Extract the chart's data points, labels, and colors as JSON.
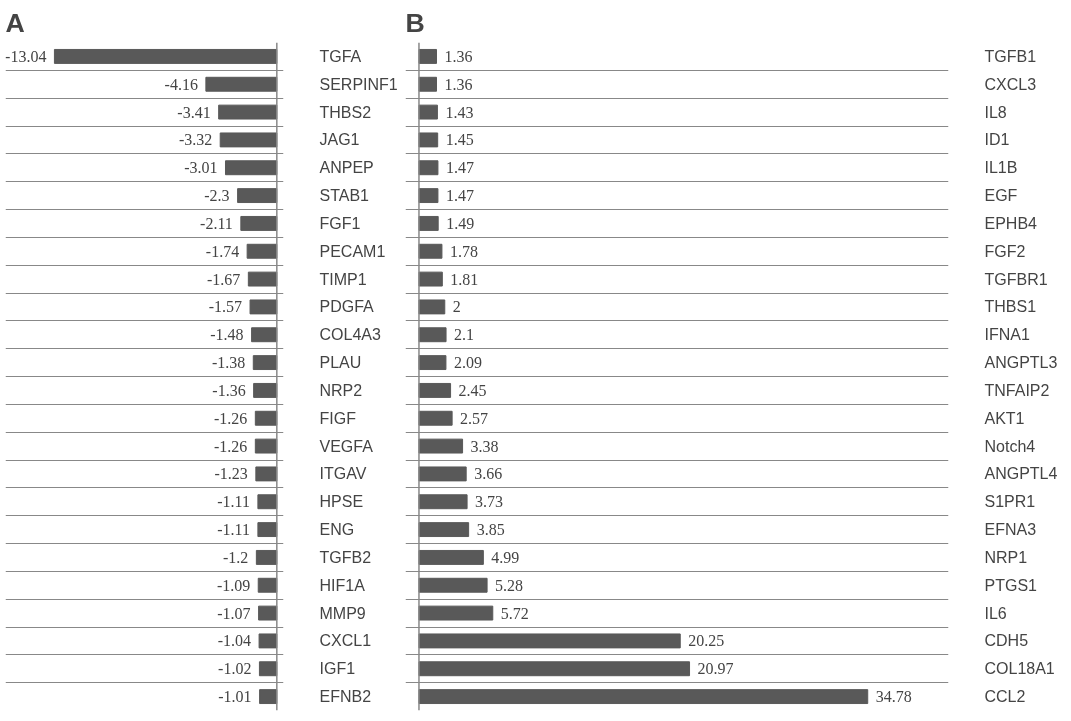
{
  "chart_data": [
    {
      "type": "bar",
      "title": "A",
      "orientation": "horizontal",
      "color": "#595959",
      "data_labels": true,
      "grid": "y",
      "tick_labels": "y",
      "categories": [
        "TGFA",
        "SERPINF1",
        "THBS2",
        "JAG1",
        "ANPEP",
        "STAB1",
        "FGF1",
        "PECAM1",
        "TIMP1",
        "PDGFA",
        "COL4A3",
        "PLAU",
        "NRP2",
        "FIGF",
        "VEGFA",
        "ITGAV",
        "HPSE",
        "ENG",
        "TGFB2",
        "HIF1A",
        "MMP9",
        "CXCL1",
        "IGF1",
        "EFNB2"
      ],
      "values": [
        -13.04,
        -4.16,
        -3.41,
        -3.32,
        -3.01,
        -2.3,
        -2.11,
        -1.74,
        -1.67,
        -1.57,
        -1.48,
        -1.38,
        -1.36,
        -1.26,
        -1.26,
        -1.23,
        -1.11,
        -1.11,
        -1.2,
        -1.09,
        -1.07,
        -1.04,
        -1.02,
        -1.01
      ]
    },
    {
      "type": "bar",
      "title": "B",
      "orientation": "horizontal",
      "color": "#595959",
      "data_labels": true,
      "grid": "y",
      "tick_labels": "y",
      "categories": [
        "TGFB1",
        "CXCL3",
        "IL8",
        "ID1",
        "IL1B",
        "EGF",
        "EPHB4",
        "FGF2",
        "TGFBR1",
        "THBS1",
        "IFNA1",
        "ANGPTL3",
        "TNFAIP2",
        "AKT1",
        "Notch4",
        "ANGPTL4",
        "S1PR1",
        "EFNA3",
        "NRP1",
        "PTGS1",
        "IL6",
        "CDH5",
        "COL18A1",
        "CCL2"
      ],
      "values": [
        1.36,
        1.36,
        1.43,
        1.45,
        1.47,
        1.47,
        1.49,
        1.78,
        1.81,
        2,
        2.1,
        2.09,
        2.45,
        2.57,
        3.38,
        3.66,
        3.73,
        3.85,
        4.99,
        5.28,
        5.72,
        20.25,
        20.97,
        34.78
      ]
    }
  ]
}
